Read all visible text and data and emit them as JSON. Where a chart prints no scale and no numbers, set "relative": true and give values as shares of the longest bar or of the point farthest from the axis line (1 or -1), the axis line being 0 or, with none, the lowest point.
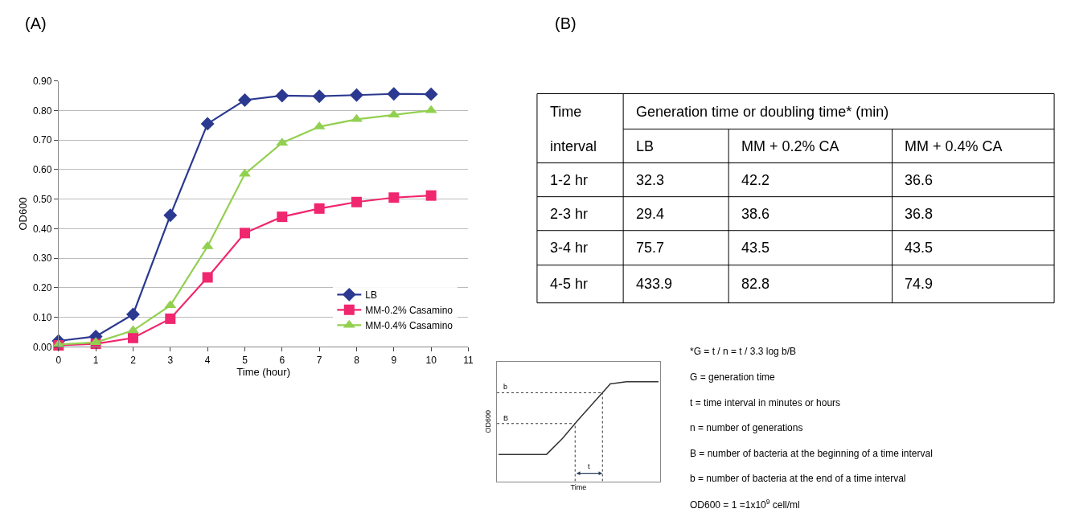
{
  "chart_data": [
    {
      "type": "line",
      "title": "(A)",
      "xlabel": "Time (hour)",
      "ylabel": "OD600",
      "x": [
        0,
        1,
        2,
        3,
        4,
        5,
        6,
        7,
        8,
        9,
        10
      ],
      "xlim": [
        0,
        11
      ],
      "xticks": [
        0,
        1,
        2,
        3,
        4,
        5,
        6,
        7,
        8,
        9,
        10,
        11
      ],
      "ylim": [
        0,
        0.9
      ],
      "yticks": [
        {
          "value": 0,
          "label": "0.00"
        },
        {
          "value": 0.1,
          "label": "0.10"
        },
        {
          "value": 0.2,
          "label": "0.20"
        },
        {
          "value": 0.3,
          "label": "0.30"
        },
        {
          "value": 0.4,
          "label": "0.40"
        },
        {
          "value": 0.5,
          "label": "0.50"
        },
        {
          "value": 0.6,
          "label": "0.60"
        },
        {
          "value": 0.7,
          "label": "0.70"
        },
        {
          "value": 0.8,
          "label": "0.80"
        },
        {
          "value": 0.9,
          "label": "0.90"
        }
      ],
      "grid": "y",
      "legend": "bottom right",
      "series": [
        {
          "name": "LB",
          "color": "#2b3990",
          "marker": "diamond",
          "values": [
            0.02,
            0.035,
            0.11,
            0.445,
            0.755,
            0.835,
            0.85,
            0.848,
            0.852,
            0.856,
            0.855
          ]
        },
        {
          "name": "MM-0.2% Casamino",
          "color": "#f0266e",
          "marker": "square",
          "values": [
            0.005,
            0.01,
            0.03,
            0.095,
            0.235,
            0.385,
            0.44,
            0.468,
            0.49,
            0.505,
            0.512
          ]
        },
        {
          "name": "MM-0.4% Casamino",
          "color": "#92d050",
          "marker": "triangle",
          "values": [
            0.008,
            0.015,
            0.055,
            0.14,
            0.34,
            0.585,
            0.69,
            0.745,
            0.77,
            0.785,
            0.8
          ]
        }
      ]
    },
    {
      "type": "heatmap",
      "title": "(B)",
      "ylabel": "Time interval",
      "xlabel": "Generation time or doubling time* (min)",
      "categories": [
        "LB",
        "MM + 0.2% CA",
        "MM + 0.4% CA"
      ],
      "y_categories": [
        "1-2 hr",
        "2-3 hr",
        "3-4 hr",
        "4-5 hr"
      ],
      "cells": [
        [
          32.3,
          42.2,
          36.6
        ],
        [
          29.4,
          38.6,
          36.8
        ],
        [
          75.7,
          43.5,
          43.5
        ],
        [
          433.9,
          82.8,
          74.9
        ]
      ],
      "data_labels": true
    },
    {
      "type": "line",
      "relative": true,
      "xlabel": "Time",
      "ylabel": "OD600",
      "categories": [
        null,
        null,
        null,
        null,
        null,
        null,
        null,
        null,
        null,
        null,
        null
      ],
      "values": [
        0.27,
        0.27,
        0.27,
        0.27,
        0.43,
        0.62,
        0.8,
        0.98,
        1,
        1,
        1
      ],
      "color": "#333333",
      "marker": "none",
      "ref_lines": [
        {
          "axis": "y",
          "value": 0.58,
          "label": "B",
          "line_style": "dotted"
        },
        {
          "axis": "y",
          "value": 0.89,
          "label": "b",
          "line_style": "dotted"
        }
      ],
      "annotations": [
        "t",
        "*G = t / n = t / 3.3 log b/B",
        "G = generation time",
        "t = time interval in minutes or hours",
        "n = number of generations",
        "B = number of bacteria at the beginning of a time interval",
        "b = number of bacteria at the end of a time interval",
        "OD600 = 1 =1x10$^{9}$ cell/ml"
      ]
    }
  ]
}
